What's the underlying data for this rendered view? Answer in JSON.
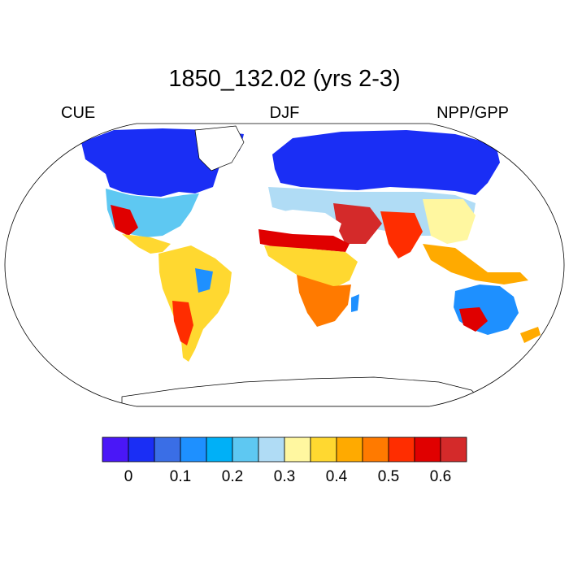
{
  "title": "1850_132.02 (yrs 2-3)",
  "left_label": "CUE",
  "center_label": "DJF",
  "right_label": "NPP/GPP",
  "colorbar": {
    "colors": [
      "#4a17f7",
      "#1a2ef5",
      "#3a6ee6",
      "#1e90ff",
      "#00b0f7",
      "#5ec8f2",
      "#b0dcf5",
      "#fff7a0",
      "#ffd830",
      "#ffaa00",
      "#ff7a00",
      "#ff2d00",
      "#e00000",
      "#d42a2a"
    ],
    "tick_labels": [
      "0",
      "0.1",
      "0.2",
      "0.3",
      "0.4",
      "0.5",
      "0.6"
    ]
  },
  "map": {
    "projection": "robinson",
    "ocean_color": "#ffffff",
    "outline_color": "#000000"
  }
}
